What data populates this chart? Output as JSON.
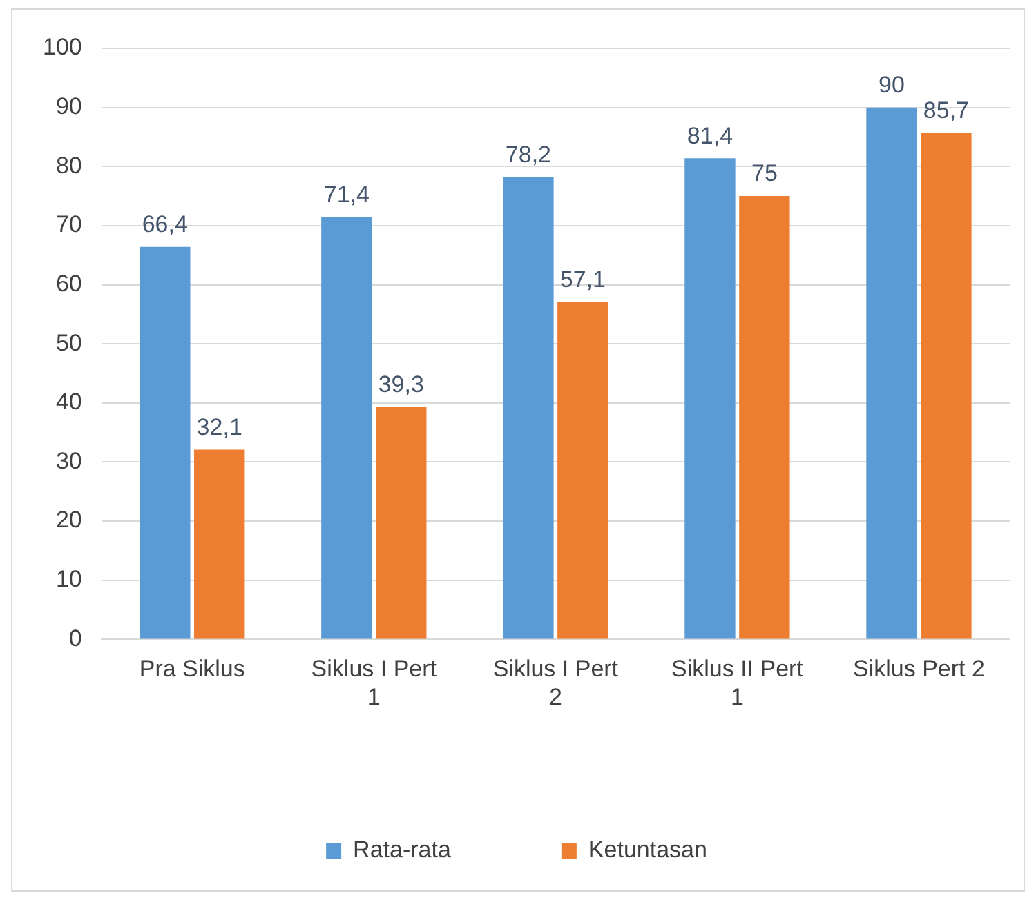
{
  "chart_data": {
    "type": "bar",
    "categories": [
      "Pra Siklus",
      "Siklus I Pert 1",
      "Siklus I Pert 2",
      "Siklus II Pert 1",
      "Siklus Pert 2"
    ],
    "series": [
      {
        "name": "Rata-rata",
        "color": "#5b9bd5",
        "values": [
          66.4,
          71.4,
          78.2,
          81.4,
          90
        ],
        "value_labels": [
          "66,4",
          "71,4",
          "78,2",
          "81,4",
          "90"
        ]
      },
      {
        "name": "Ketuntasan",
        "color": "#ed7d31",
        "values": [
          32.1,
          39.3,
          57.1,
          75,
          85.7
        ],
        "value_labels": [
          "32,1",
          "39,3",
          "57,1",
          "75",
          "85,7"
        ]
      }
    ],
    "ylim": [
      0,
      100
    ],
    "yticks": [
      0,
      10,
      20,
      30,
      40,
      50,
      60,
      70,
      80,
      90,
      100
    ],
    "grid": "y",
    "legend": "bottom"
  }
}
